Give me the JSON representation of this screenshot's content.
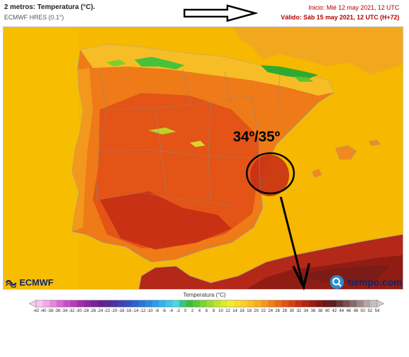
{
  "header": {
    "title": "2 metros: Temperatura (°C).",
    "model": "ECMWF HRES (0.1°)",
    "init": "Inicio: Mié 12 may 2021, 12 UTC",
    "valid": "Válido: Sáb 15 may 2021, 12 UTC (H+72)"
  },
  "annotation": {
    "label": "34º/35º"
  },
  "logos": {
    "left": "ECMWF",
    "right": "tiempo.com"
  },
  "legend": {
    "title": "Temperatura (°C)",
    "ticks": [
      "-42",
      "-40",
      "-38",
      "-36",
      "-34",
      "-32",
      "-30",
      "-28",
      "-26",
      "-24",
      "-22",
      "-20",
      "-18",
      "-16",
      "-14",
      "-12",
      "-10",
      "-8",
      "-6",
      "-4",
      "-2",
      "0",
      "2",
      "4",
      "6",
      "8",
      "10",
      "12",
      "14",
      "16",
      "18",
      "20",
      "22",
      "24",
      "26",
      "28",
      "30",
      "32",
      "34",
      "36",
      "38",
      "40",
      "42",
      "44",
      "46",
      "48",
      "50",
      "52",
      "54"
    ],
    "colors": [
      "#f7c8ee",
      "#f0a8e6",
      "#e488dc",
      "#d868d0",
      "#c850c4",
      "#b440b8",
      "#a030ac",
      "#8c28a0",
      "#782494",
      "#682088",
      "#5a2890",
      "#4c34a0",
      "#4040b0",
      "#3450c0",
      "#2c62cc",
      "#2874d8",
      "#2888e0",
      "#2c9ce6",
      "#34b0ea",
      "#40c4ec",
      "#4cd6e8",
      "#34c880",
      "#3cbc3c",
      "#58c838",
      "#78d434",
      "#9cdc30",
      "#bce42c",
      "#dcea2c",
      "#f0ec30",
      "#f8dc2c",
      "#fccc28",
      "#fcbc24",
      "#f8aa20",
      "#f4961c",
      "#f08018",
      "#ea6a16",
      "#e25414",
      "#d84014",
      "#c83014",
      "#b42414",
      "#9c1c14",
      "#841814",
      "#6c1818",
      "#5c2020",
      "#6a3838",
      "#7a5050",
      "#8c6a6a",
      "#a08686",
      "#b4a4a4",
      "#c8bebe"
    ],
    "colors_note": "",
    "low_arrow": "#f4d0f0",
    "high_arrow": "#d0d0d0"
  },
  "colors": {
    "sea": "#f4b400",
    "land_hot": "#e25414",
    "land_very_hot": "#c02814",
    "land_warm": "#f08018",
    "mountain_cool": "#46c23a",
    "border": "#8a8a8a"
  }
}
